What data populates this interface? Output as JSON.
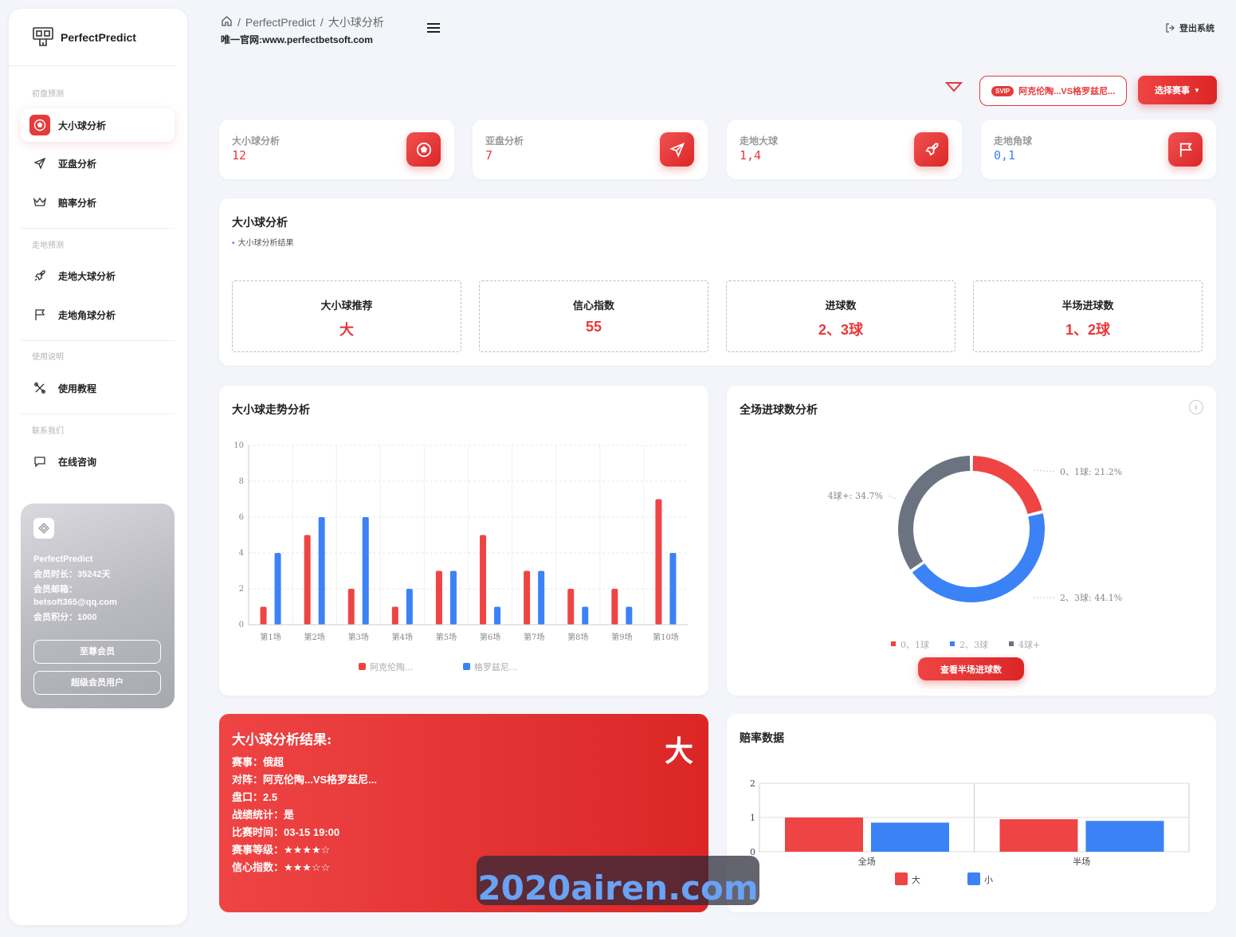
{
  "app": {
    "brand": "PerfectPredict",
    "breadcrumb_home": "PerfectPredict",
    "breadcrumb_current": "大小球分析",
    "site_url": "唯一官网:www.perfectbetsoft.com",
    "logout": "登出系统"
  },
  "sidebar": {
    "sections": [
      "初盘预测",
      "走地预测",
      "使用说明",
      "联系我们"
    ],
    "items": [
      {
        "label": "大小球分析",
        "icon": "soccer-ball-icon",
        "active": true
      },
      {
        "label": "亚盘分析",
        "icon": "send-icon",
        "active": false
      },
      {
        "label": "赔率分析",
        "icon": "crown-icon",
        "active": false
      },
      {
        "label": "走地大球分析",
        "icon": "rocket-icon",
        "active": false
      },
      {
        "label": "走地角球分析",
        "icon": "flag-icon",
        "active": false
      },
      {
        "label": "使用教程",
        "icon": "tools-icon",
        "active": false
      },
      {
        "label": "在线咨询",
        "icon": "chat-icon",
        "active": false
      }
    ],
    "member": {
      "name": "PerfectPredict",
      "duration": "会员时长：35242天",
      "email_label": "会员邮箱：",
      "email": "betsoft365@qq.com",
      "points": "会员积分：1000",
      "btn_vip": "至尊会员",
      "btn_super": "超级会员用户"
    }
  },
  "toolbar": {
    "svip": "SVIP",
    "match": "阿克伦陶...VS格罗兹尼...",
    "select_label": "选择赛事"
  },
  "stats": [
    {
      "label": "大小球分析",
      "value": "12",
      "color": "#e8393b",
      "icon": "soccer-ball-icon"
    },
    {
      "label": "亚盘分析",
      "value": "7",
      "color": "#e8393b",
      "icon": "send-icon"
    },
    {
      "label": "走地大球",
      "value": "1,4",
      "color": "#e8393b",
      "icon": "rocket-icon"
    },
    {
      "label": "走地角球",
      "value": "0,1",
      "color": "#3b82f6",
      "icon": "flag-icon"
    }
  ],
  "analysis": {
    "title": "大小球分析",
    "subtitle": "大小球分析结果",
    "boxes": [
      {
        "label": "大小球推荐",
        "value": "大"
      },
      {
        "label": "信心指数",
        "value": "55"
      },
      {
        "label": "进球数",
        "value": "2、3球"
      },
      {
        "label": "半场进球数",
        "value": "1、2球"
      }
    ]
  },
  "trend_panel": {
    "title": "大小球走势分析"
  },
  "goals_panel": {
    "title": "全场进球数分析",
    "info": "i",
    "button": "查看半场进球数"
  },
  "odds_panel": {
    "title": "赔率数据"
  },
  "result_card": {
    "title": "大小球分析结果:",
    "big": "大",
    "rows": [
      "赛事：俄超",
      "对阵：阿克伦陶...VS格罗兹尼...",
      "盘口：2.5",
      "战绩统计：是",
      "比赛时间：03-15 19:00",
      "赛事等级：★★★★☆",
      "信心指数：★★★☆☆"
    ]
  },
  "watermark": "2020airen.com",
  "chart_data": [
    {
      "type": "bar",
      "categories": [
        "第1场",
        "第2场",
        "第3场",
        "第4场",
        "第5场",
        "第6场",
        "第7场",
        "第8场",
        "第9场",
        "第10场"
      ],
      "series": [
        {
          "name": "阿克伦陶...",
          "color": "#ef4444",
          "values": [
            1,
            5,
            2,
            1,
            3,
            5,
            3,
            2,
            2,
            7
          ]
        },
        {
          "name": "格罗兹尼...",
          "color": "#3b82f6",
          "values": [
            4,
            6,
            6,
            2,
            3,
            1,
            3,
            1,
            1,
            4
          ]
        }
      ],
      "ylim": [
        0,
        10
      ],
      "yticks": [
        "0",
        "2",
        "4",
        "6",
        "8",
        "10"
      ],
      "grid": true,
      "legend": "bottom"
    },
    {
      "type": "pie",
      "labels": [
        "0、1球",
        "2、3球",
        "4球+"
      ],
      "values": [
        21.2,
        44.1,
        34.7
      ],
      "colors": [
        "#ef4444",
        "#3b82f6",
        "#6b7280"
      ],
      "slice_labels": [
        "0、1球: 21.2%",
        "2、3球: 44.1%",
        "4球+: 34.7%"
      ],
      "legend": "bottom"
    },
    {
      "type": "bar",
      "categories": [
        "全场",
        "半场"
      ],
      "series": [
        {
          "name": "大",
          "color": "#ef4444",
          "values": [
            1.0,
            0.95
          ]
        },
        {
          "name": "小",
          "color": "#3b82f6",
          "values": [
            0.85,
            0.9
          ]
        }
      ],
      "ylim": [
        0,
        2
      ],
      "yticks": [
        "0",
        "1",
        "2"
      ],
      "legend": "bottom"
    }
  ]
}
